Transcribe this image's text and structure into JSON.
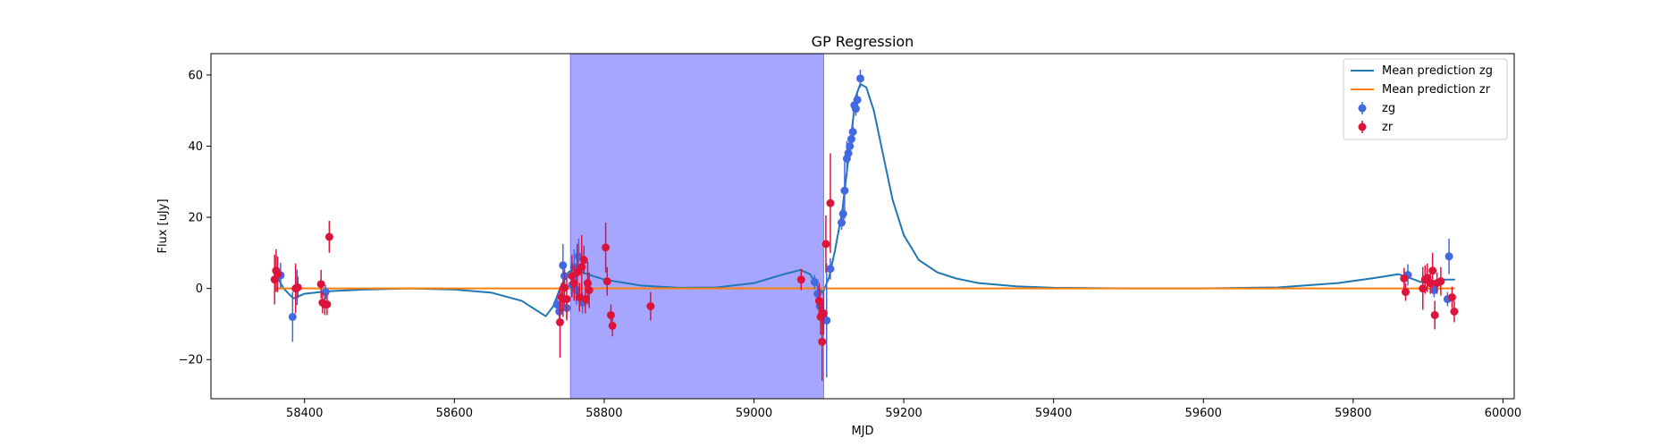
{
  "chart_data": {
    "type": "line",
    "title": "GP Regression",
    "xlabel": "MJD",
    "ylabel": "Flux [uJy]",
    "xlim": [
      58275,
      60015
    ],
    "ylim": [
      -31,
      66
    ],
    "xticks": [
      58400,
      58600,
      58800,
      59000,
      59200,
      59400,
      59600,
      59800,
      60000
    ],
    "yticks": [
      -20,
      0,
      20,
      40,
      60
    ],
    "shaded_region": {
      "x_start": 58755,
      "x_end": 59093,
      "color": "#a6a6ff"
    },
    "colors": {
      "zg_line": "#1f77b4",
      "zr_line": "#ff7f0e",
      "zg_points": "#4169e1",
      "zr_points": "#dc143c"
    },
    "legend": {
      "position": "top-right",
      "entries": [
        "Mean prediction zg",
        "Mean prediction zr",
        "zg",
        "zr"
      ]
    },
    "series": [
      {
        "name": "Mean prediction zg",
        "kind": "line",
        "x": [
          58362,
          58372,
          58385,
          58400,
          58430,
          58480,
          58540,
          58600,
          58650,
          58690,
          58710,
          58722,
          58732,
          58742,
          58752,
          58760,
          58775,
          58800,
          58850,
          58900,
          58950,
          59000,
          59040,
          59062,
          59075,
          59085,
          59092,
          59100,
          59108,
          59118,
          59128,
          59136,
          59142,
          59150,
          59160,
          59172,
          59185,
          59200,
          59220,
          59245,
          59270,
          59300,
          59350,
          59400,
          59500,
          59600,
          59700,
          59780,
          59830,
          59860,
          59875,
          59890,
          59905,
          59920,
          59935
        ],
        "y": [
          3.8,
          0,
          -2.8,
          -1.5,
          -0.8,
          -0.3,
          0,
          -0.3,
          -1.2,
          -3.5,
          -6.2,
          -7.8,
          -5,
          0.5,
          4.5,
          5.5,
          4.2,
          2.5,
          0.8,
          0.2,
          0.3,
          1.5,
          4,
          5.2,
          4,
          0.5,
          -1.2,
          3,
          10.5,
          22,
          40,
          54,
          57.5,
          56.5,
          50,
          38,
          25,
          15,
          8,
          4.5,
          2.8,
          1.5,
          0.6,
          0.2,
          0,
          0,
          0.3,
          1.5,
          3,
          4,
          3,
          1.8,
          2,
          2.5,
          2.5
        ]
      },
      {
        "name": "Mean prediction zr",
        "kind": "line",
        "x": [
          58362,
          59935
        ],
        "y": [
          0,
          0
        ]
      },
      {
        "name": "zg",
        "kind": "errorbar",
        "x": [
          58368,
          58384,
          58390,
          58428,
          58737,
          58740,
          58745,
          58747,
          58750,
          58757,
          58760,
          58763,
          58766,
          58771,
          59081,
          59085,
          59088,
          59093,
          59097,
          59102,
          59117,
          59119,
          59121,
          59124,
          59126,
          59128,
          59130,
          59132,
          59134,
          59136,
          59138,
          59142,
          59873,
          59908,
          59926,
          59928
        ],
        "y": [
          3.7,
          -8,
          0.3,
          -1,
          -4.5,
          -6.5,
          6.5,
          3.5,
          -5.5,
          1,
          6,
          -0.5,
          9,
          -4,
          1.8,
          -1.5,
          -5,
          -8,
          -9,
          5.5,
          18.5,
          21,
          27.5,
          36.5,
          38,
          40,
          42,
          44,
          51.5,
          50.5,
          53,
          59,
          3.8,
          -0.5,
          -3,
          9
        ],
        "err": [
          3.5,
          7,
          5,
          2,
          2,
          3,
          6,
          2.5,
          3,
          3,
          5,
          4,
          5,
          3,
          2,
          2,
          3,
          3,
          16,
          3,
          2,
          3,
          8,
          5,
          2,
          3,
          2,
          3,
          2,
          2,
          2,
          2.5,
          3,
          2,
          2,
          5
        ]
      },
      {
        "name": "zr",
        "kind": "errorbar",
        "x": [
          58360,
          58362,
          58364,
          58388,
          58391,
          58422,
          58424,
          58427,
          58430,
          58433,
          58741,
          58743,
          58745,
          58747,
          58750,
          58757,
          58760,
          58764,
          58767,
          58770,
          58773,
          58775,
          58778,
          58780,
          58802,
          58804,
          58809,
          58811,
          58862,
          59063,
          59087,
          59089,
          59091,
          59093,
          59096,
          59102,
          59868,
          59870,
          59893,
          59896,
          59899,
          59903,
          59906,
          59909,
          59912,
          59917,
          59932,
          59935
        ],
        "y": [
          2.5,
          5,
          4,
          0,
          0.3,
          1.2,
          -4,
          -4.5,
          -4.5,
          14.5,
          -9.5,
          -2.5,
          -3,
          0.2,
          -3,
          3.5,
          1.5,
          4.5,
          -2.5,
          6,
          8,
          -3,
          1.5,
          -0.5,
          11.5,
          2,
          -7.5,
          -10.5,
          -5,
          2.5,
          -3.5,
          -8,
          -15,
          -7,
          12.5,
          24,
          2.8,
          -1,
          0,
          2.5,
          3,
          1.5,
          5,
          -7.5,
          1.5,
          2,
          -2.5,
          -6.5
        ],
        "err": [
          7,
          6,
          5,
          7,
          3,
          4,
          3,
          3,
          3,
          4.5,
          10,
          4,
          5,
          5,
          6,
          6,
          5,
          8,
          4,
          9,
          4,
          4,
          6,
          5,
          7,
          4,
          3,
          3,
          4,
          3,
          5,
          5,
          11,
          6,
          8,
          14,
          3,
          2.5,
          6,
          4,
          4,
          3,
          5,
          4,
          3,
          4,
          3,
          3
        ]
      }
    ]
  }
}
